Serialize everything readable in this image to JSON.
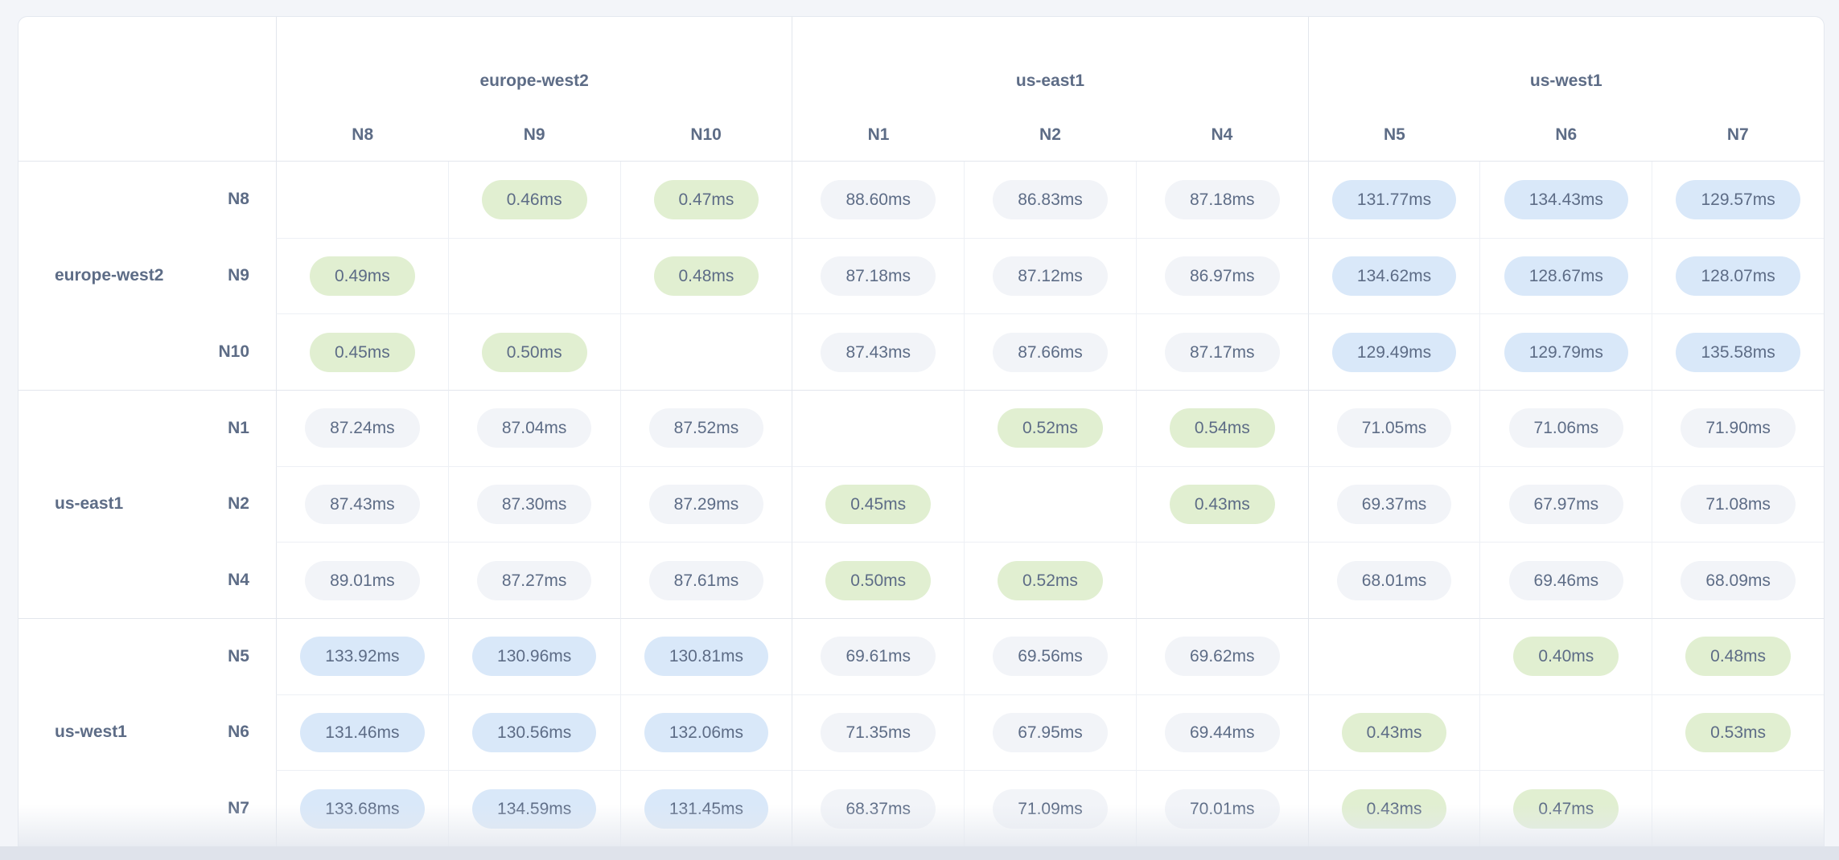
{
  "table": {
    "unit_suffix": "ms",
    "column_groups": [
      {
        "region": "europe-west2",
        "nodes": [
          "N8",
          "N9",
          "N10"
        ]
      },
      {
        "region": "us-east1",
        "nodes": [
          "N1",
          "N2",
          "N4"
        ]
      },
      {
        "region": "us-west1",
        "nodes": [
          "N5",
          "N6",
          "N7"
        ]
      }
    ],
    "row_groups": [
      {
        "region": "europe-west2",
        "nodes": [
          "N8",
          "N9",
          "N10"
        ]
      },
      {
        "region": "us-east1",
        "nodes": [
          "N1",
          "N2",
          "N4"
        ]
      },
      {
        "region": "us-west1",
        "nodes": [
          "N5",
          "N6",
          "N7"
        ]
      }
    ],
    "rows": [
      {
        "node": "N8",
        "values": [
          "",
          "0.46ms",
          "0.47ms",
          "88.60ms",
          "86.83ms",
          "87.18ms",
          "131.77ms",
          "134.43ms",
          "129.57ms"
        ],
        "tones": [
          "e",
          "g",
          "g",
          "n",
          "n",
          "n",
          "b",
          "b",
          "b"
        ]
      },
      {
        "node": "N9",
        "values": [
          "0.49ms",
          "",
          "0.48ms",
          "87.18ms",
          "87.12ms",
          "86.97ms",
          "134.62ms",
          "128.67ms",
          "128.07ms"
        ],
        "tones": [
          "g",
          "e",
          "g",
          "n",
          "n",
          "n",
          "b",
          "b",
          "b"
        ]
      },
      {
        "node": "N10",
        "values": [
          "0.45ms",
          "0.50ms",
          "",
          "87.43ms",
          "87.66ms",
          "87.17ms",
          "129.49ms",
          "129.79ms",
          "135.58ms"
        ],
        "tones": [
          "g",
          "g",
          "e",
          "n",
          "n",
          "n",
          "b",
          "b",
          "b"
        ]
      },
      {
        "node": "N1",
        "values": [
          "87.24ms",
          "87.04ms",
          "87.52ms",
          "",
          "0.52ms",
          "0.54ms",
          "71.05ms",
          "71.06ms",
          "71.90ms"
        ],
        "tones": [
          "n",
          "n",
          "n",
          "e",
          "g",
          "g",
          "n",
          "n",
          "n"
        ]
      },
      {
        "node": "N2",
        "values": [
          "87.43ms",
          "87.30ms",
          "87.29ms",
          "0.45ms",
          "",
          "0.43ms",
          "69.37ms",
          "67.97ms",
          "71.08ms"
        ],
        "tones": [
          "n",
          "n",
          "n",
          "g",
          "e",
          "g",
          "n",
          "n",
          "n"
        ]
      },
      {
        "node": "N4",
        "values": [
          "89.01ms",
          "87.27ms",
          "87.61ms",
          "0.50ms",
          "0.52ms",
          "",
          "68.01ms",
          "69.46ms",
          "68.09ms"
        ],
        "tones": [
          "n",
          "n",
          "n",
          "g",
          "g",
          "e",
          "n",
          "n",
          "n"
        ]
      },
      {
        "node": "N5",
        "values": [
          "133.92ms",
          "130.96ms",
          "130.81ms",
          "69.61ms",
          "69.56ms",
          "69.62ms",
          "",
          "0.40ms",
          "0.48ms"
        ],
        "tones": [
          "b",
          "b",
          "b",
          "n",
          "n",
          "n",
          "e",
          "g",
          "g"
        ]
      },
      {
        "node": "N6",
        "values": [
          "131.46ms",
          "130.56ms",
          "132.06ms",
          "71.35ms",
          "67.95ms",
          "69.44ms",
          "0.43ms",
          "",
          "0.53ms"
        ],
        "tones": [
          "b",
          "b",
          "b",
          "n",
          "n",
          "n",
          "g",
          "e",
          "g"
        ]
      },
      {
        "node": "N7",
        "values": [
          "133.68ms",
          "134.59ms",
          "131.45ms",
          "68.37ms",
          "71.09ms",
          "70.01ms",
          "0.43ms",
          "0.47ms",
          ""
        ],
        "tones": [
          "b",
          "b",
          "b",
          "n",
          "n",
          "n",
          "g",
          "g",
          "e"
        ]
      }
    ]
  },
  "colors": {
    "page_bg": "#f3f5f9",
    "card_bg": "#ffffff",
    "border_outer": "#e4e8ef",
    "border_group": "#e2e6ed",
    "border_inner": "#edf0f5",
    "text": "#5d6c86",
    "low_latency_pill_bg": "#e1efd1",
    "medium_latency_pill_bg": "#f2f4f8",
    "high_latency_pill_bg": "#d9e8f9",
    "bottom_strip_bg": "#dfe3eb"
  }
}
